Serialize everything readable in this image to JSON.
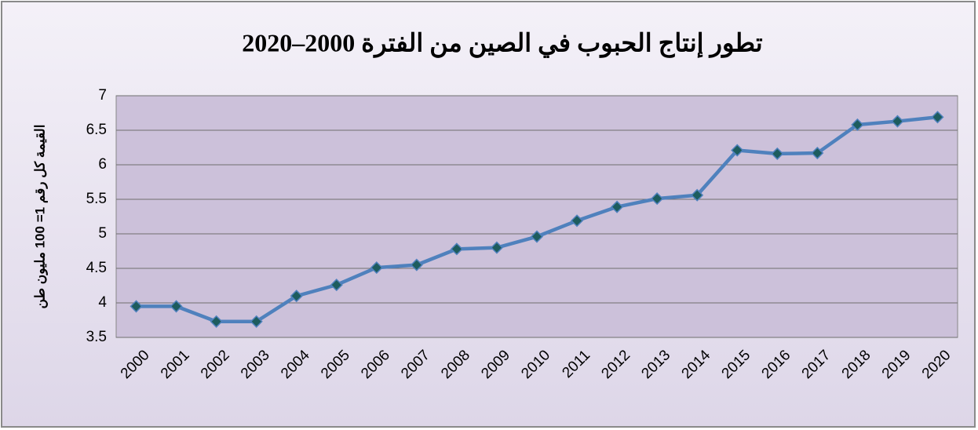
{
  "chart_data": {
    "type": "line",
    "title": "تطور إنتاج الحبوب في الصين من الفترة 2000–2020",
    "y_label": "القيمة كل رقم 1= 100 مليون طن",
    "categories": [
      "2000",
      "2001",
      "2002",
      "2003",
      "2004",
      "2005",
      "2006",
      "2007",
      "2008",
      "2009",
      "2010",
      "2011",
      "2012",
      "2013",
      "2014",
      "2015",
      "2016",
      "2017",
      "2018",
      "2019",
      "2020"
    ],
    "values": [
      3.95,
      3.95,
      3.73,
      3.73,
      4.1,
      4.26,
      4.51,
      4.55,
      4.78,
      4.8,
      4.96,
      5.19,
      5.39,
      5.51,
      5.56,
      6.21,
      6.16,
      6.17,
      6.58,
      6.63,
      6.69
    ],
    "color": "#4f81bd",
    "marker_color": "#1d5c5e",
    "ylim": [
      3.5,
      7
    ],
    "yticks": [
      3.5,
      4,
      4.5,
      5,
      5.5,
      6,
      6.5,
      7
    ],
    "grid": true
  }
}
